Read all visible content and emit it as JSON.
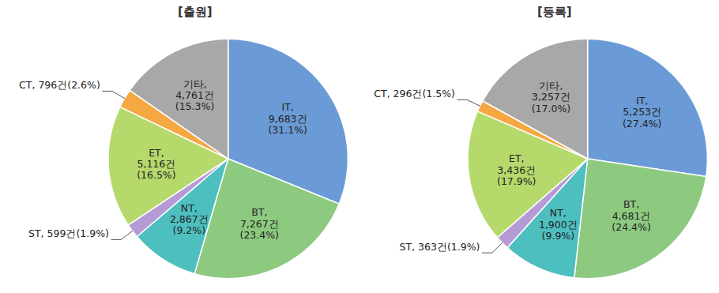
{
  "chart_data": [
    {
      "type": "pie",
      "title": "[출원]",
      "categories": [
        "IT",
        "BT",
        "NT",
        "ST",
        "ET",
        "CT",
        "기타"
      ],
      "values": [
        9683,
        7267,
        2867,
        599,
        5116,
        796,
        4761
      ],
      "value_labels": [
        "IT, 9,683건(31.1%)",
        "BT, 7,267건(23.4%)",
        "NT, 2,867건(9.2%)",
        "ST, 599건(1.9%)",
        "ET, 5,116건(16.5%)",
        "CT, 796건(2.6%)",
        "기타, 4,761건(15.3%)"
      ],
      "colors": [
        "#6b9bd6",
        "#8dca80",
        "#4dbfbf",
        "#b59bd6",
        "#b6d96c",
        "#f5a742",
        "#a8a8a8"
      ],
      "data_labels": true
    },
    {
      "type": "pie",
      "title": "[등록]",
      "categories": [
        "IT",
        "BT",
        "NT",
        "ST",
        "ET",
        "CT",
        "기타"
      ],
      "values": [
        5253,
        4681,
        1900,
        363,
        3436,
        296,
        3257
      ],
      "value_labels": [
        "IT, 5,253건(27.4%)",
        "BT, 4,681건(24.4%)",
        "NT, 1,900건(9.9%)",
        "ST, 363건(1.9%)",
        "ET, 3,436건(17.9%)",
        "CT, 296건(1.5%)",
        "기타, 3,257건(17.0%)"
      ],
      "colors": [
        "#6b9bd6",
        "#8dca80",
        "#4dbfbf",
        "#b59bd6",
        "#b6d96c",
        "#f5a742",
        "#a8a8a8"
      ],
      "data_labels": true
    }
  ]
}
